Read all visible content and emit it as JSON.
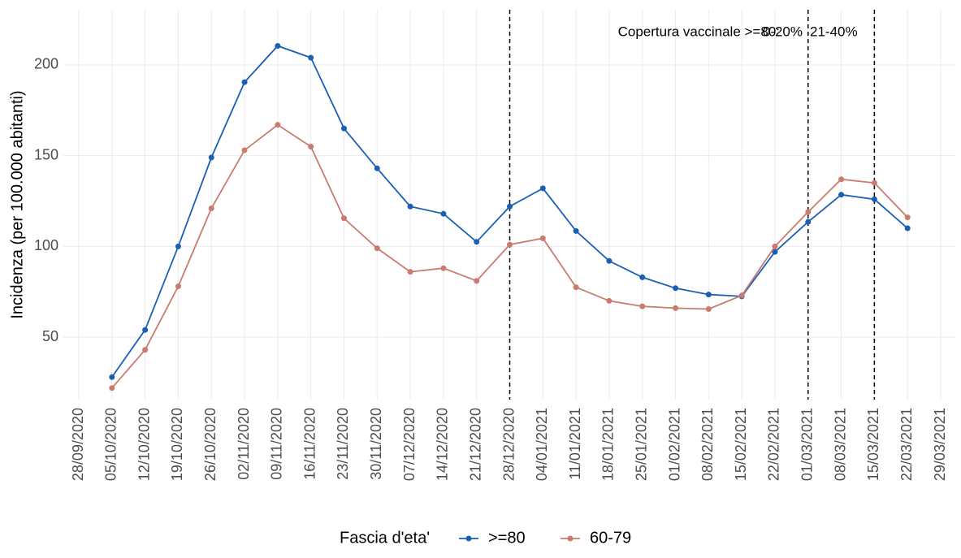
{
  "chart_data": {
    "type": "line",
    "y_label": "Incidenza (per 100.000 abitanti)",
    "legend_title": "Fascia d'eta'",
    "categories": [
      "28/09/2020",
      "05/10/2020",
      "12/10/2020",
      "19/10/2020",
      "26/10/2020",
      "02/11/2020",
      "09/11/2020",
      "16/11/2020",
      "23/11/2020",
      "30/11/2020",
      "07/12/2020",
      "14/12/2020",
      "21/12/2020",
      "28/12/2020",
      "04/01/2021",
      "11/01/2021",
      "18/01/2021",
      "25/01/2021",
      "01/02/2021",
      "08/02/2021",
      "15/02/2021",
      "22/02/2021",
      "01/03/2021",
      "08/03/2021",
      "15/03/2021",
      "22/03/2021",
      "29/03/2021"
    ],
    "series": [
      {
        "name": ">=80",
        "color": "#1a5fb4",
        "values": [
          null,
          28,
          54,
          100,
          149,
          190.5,
          210.5,
          204,
          165,
          143,
          122,
          118,
          102.5,
          122,
          132,
          108.5,
          92,
          83,
          77,
          73.5,
          72.5,
          97,
          113.5,
          128.5,
          126,
          110,
          null
        ]
      },
      {
        "name": "60-79",
        "color": "#c97b6e",
        "values": [
          null,
          22,
          43,
          78,
          121,
          153,
          167,
          155,
          115.5,
          99,
          86,
          88,
          81,
          101,
          104.5,
          77.5,
          70,
          67,
          66,
          65.5,
          73,
          100,
          119,
          137,
          135,
          116,
          null
        ]
      }
    ],
    "ylim": [
      15.6,
      230.4
    ],
    "yticks": [
      50,
      100,
      150,
      200
    ],
    "grid": true,
    "vlines": [
      "28/12/2020",
      "01/03/2021",
      "15/03/2021"
    ],
    "annotations": [
      "Copertura vaccinale >=80:",
      "0-20%",
      "21-40%"
    ],
    "legend_position": "bottom"
  }
}
